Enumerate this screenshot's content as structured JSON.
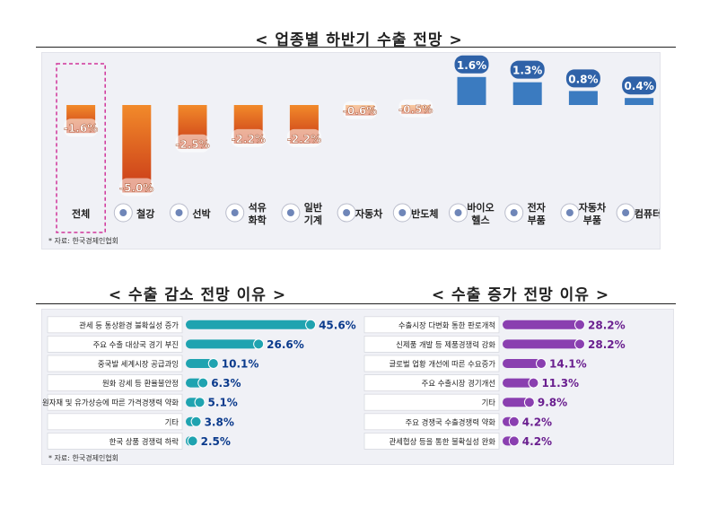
{
  "titles": {
    "top": "< 업종별 하반기 수출 전망 >",
    "left": "< 수출 감소 전망 이유 >",
    "right": "< 수출 증가 전망 이유 >"
  },
  "source": "* 자료: 한국경제인협회",
  "colors": {
    "negative_top": "#f28a2a",
    "negative_bottom": "#c93a18",
    "positive": "#3b7bc0",
    "label_box": "#2f62a8",
    "decrease_bar": "#1fa3b0",
    "increase_bar": "#8a3fb0",
    "decrease_text": "#0a3a8c",
    "increase_text": "#6a1f8f"
  },
  "chart_data": [
    {
      "type": "bar",
      "categories": [
        "전체",
        "철강",
        "선박",
        "석유 화학",
        "일반 기계",
        "자동차",
        "반도체",
        "바이오 헬스",
        "전자 부품",
        "자동차 부품",
        "컴퓨터"
      ],
      "category_icons": [
        "",
        "steel-coils-icon",
        "ship-icon",
        "oil-tank-icon",
        "gear-machine-icon",
        "car-icon",
        "chip-icon",
        "dna-icon",
        "plug-icon",
        "tire-icon",
        "monitor-icon"
      ],
      "values": [
        -1.6,
        -5.0,
        -2.5,
        -2.2,
        -2.2,
        -0.6,
        -0.5,
        1.6,
        1.3,
        0.8,
        0.4
      ],
      "data_labels": [
        "-1.6%",
        "-5.0%",
        "-2.5%",
        "-2.2%",
        "-2.2%",
        "-0.6%",
        "-0.5%",
        "1.6%",
        "1.3%",
        "0.8%",
        "0.4%"
      ],
      "highlight": "전체",
      "ylim": [
        -5.6,
        2.4
      ]
    },
    {
      "type": "bar",
      "orientation": "horizontal",
      "categories": [
        "관세 등 통상환경 불확실성 증가",
        "주요 수출 대상국 경기 부진",
        "중국발 세계시장 공급과잉",
        "원화 강세 등 환율불안정",
        "원자재 및 유가상승에 따른 가격경쟁력 약화",
        "기타",
        "한국 상품 경쟁력 하락"
      ],
      "values": [
        45.6,
        26.6,
        10.1,
        6.3,
        5.1,
        3.8,
        2.5
      ],
      "data_labels": [
        "45.6%",
        "26.6%",
        "10.1%",
        "6.3%",
        "5.1%",
        "3.8%",
        "2.5%"
      ],
      "xlim": [
        0,
        50
      ]
    },
    {
      "type": "bar",
      "orientation": "horizontal",
      "categories": [
        "수출시장 다변화 통한 판로개척",
        "신제품 개발 등 제품경쟁력 강화",
        "글로벌 업황 개선에 따른 수요증가",
        "주요 수출시장 경기개선",
        "기타",
        "주요 경쟁국 수출경쟁력 약화",
        "관세협상 등을 통한 불확실성 완화"
      ],
      "values": [
        28.2,
        28.2,
        14.1,
        11.3,
        9.8,
        4.2,
        4.2
      ],
      "data_labels": [
        "28.2%",
        "28.2%",
        "14.1%",
        "11.3%",
        "9.8%",
        "4.2%",
        "4.2%"
      ],
      "xlim": [
        0,
        50
      ]
    }
  ]
}
